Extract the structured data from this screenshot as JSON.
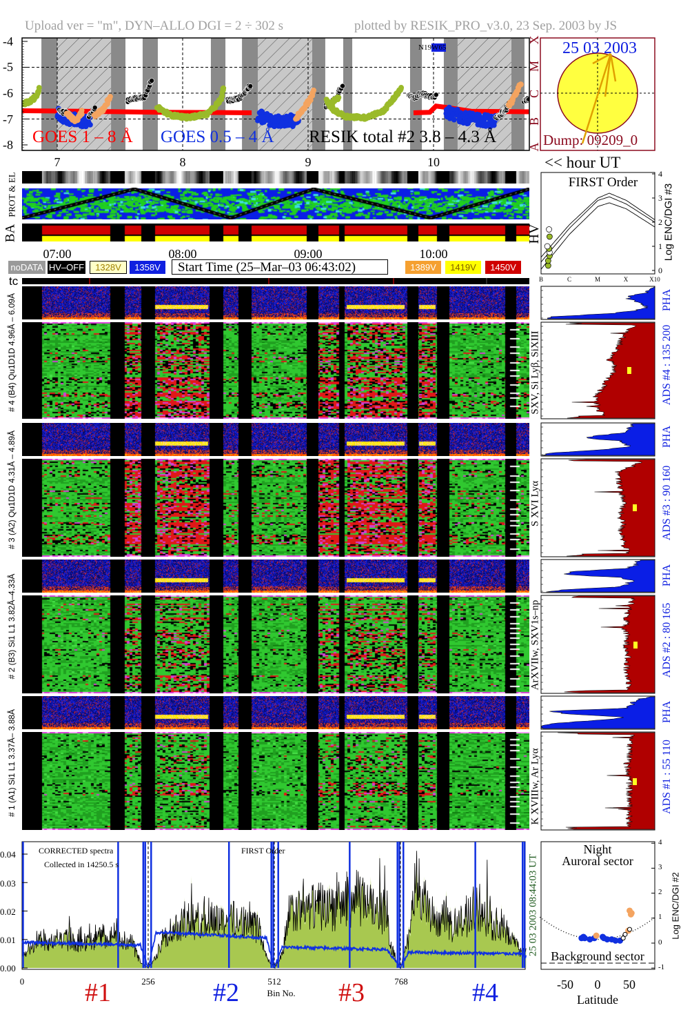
{
  "header": {
    "left": "Upload ver = \"m\", DYN–ALLO DGI =   2 ÷ 302 s",
    "right": "plotted by RESIK_PRO_v3.0, 23 Sep. 2003 by JS"
  },
  "colors": {
    "goes_long": "#ff0000",
    "goes_short": "#1030e0",
    "resik_green": "#9aba2a",
    "resik_orange": "#f4a460",
    "spectrum_fill": "#a8c850",
    "ads_fill": "#b00000",
    "pha_fill": "#0a1ee6",
    "header_gray": "#a0a0a0",
    "dark_red": "#8b0a1e",
    "dark_green": "#1e5a1e"
  },
  "top_plot": {
    "y_ticks": [
      "-4",
      "-5",
      "-6",
      "-7",
      "-8"
    ],
    "hour_labels": [
      "7",
      "8",
      "9",
      "10"
    ],
    "hour_axis_label": "<< hour UT",
    "class_letters": [
      "A",
      "B",
      "C",
      "M",
      "X"
    ],
    "legend": {
      "goes_long": "GOES 1 – 8 Å",
      "goes_short": "GOES 0.5 – 4 Å",
      "resik": "RESIK total #2  3.8 – 4.3 Å"
    },
    "position_label_a": "N19",
    "position_label_b": "W65"
  },
  "chart_data": [
    {
      "type": "scatter",
      "title": "",
      "xlabel": "hour UT",
      "ylabel": "",
      "xlim": [
        6.7172,
        10.764
      ],
      "ylim": [
        -8.2,
        -3.9
      ],
      "grid": true,
      "dark_bands_hours": [
        [
          6.874,
          7.0
        ],
        [
          7.429,
          7.544
        ],
        [
          7.681,
          7.802
        ],
        [
          8.225,
          8.341
        ],
        [
          8.473,
          8.599
        ],
        [
          9.033,
          9.137
        ],
        [
          9.28,
          9.352
        ],
        [
          9.813,
          9.907
        ],
        [
          10.082,
          10.192
        ],
        [
          10.621,
          10.725
        ]
      ],
      "hatched_bands_hours": [
        [
          7.0,
          7.429
        ],
        [
          8.599,
          9.033
        ],
        [
          10.192,
          10.621
        ]
      ],
      "series": [
        {
          "name": "GOES 1 – 8 Å",
          "color": "#ff0000",
          "segments": [
            [
              [
                6.72,
                -6.68
              ],
              [
                7.2,
                -6.7
              ],
              [
                7.8,
                -6.74
              ],
              [
                8.3,
                -6.75
              ],
              [
                8.55,
                -6.76
              ]
            ],
            [
              [
                9.84,
                -6.76
              ],
              [
                9.97,
                -6.74
              ],
              [
                10.02,
                -6.5
              ],
              [
                10.1,
                -6.55
              ],
              [
                10.3,
                -6.7
              ],
              [
                10.76,
                -6.72
              ]
            ]
          ]
        },
        {
          "name": "GOES 0.5 – 4 Å",
          "color": "#1030e0",
          "segments": [
            [
              [
                7.0,
                -6.75
              ],
              [
                7.08,
                -7.0
              ],
              [
                7.16,
                -7.05
              ],
              [
                7.26,
                -7.1
              ]
            ],
            [
              [
                8.6,
                -6.85
              ],
              [
                8.7,
                -7.05
              ],
              [
                8.8,
                -7.1
              ],
              [
                8.92,
                -7.05
              ]
            ],
            [
              [
                10.1,
                -6.7
              ],
              [
                10.25,
                -6.95
              ],
              [
                10.4,
                -7.05
              ],
              [
                10.5,
                -7.1
              ]
            ]
          ]
        },
        {
          "name": "RESIK total #2  3.8 – 4.3 Å",
          "color": "#000000",
          "segments": [
            [
              [
                7.02,
                -6.7
              ],
              [
                7.1,
                -6.8
              ]
            ],
            [
              [
                7.25,
                -6.9
              ],
              [
                7.3,
                -6.6
              ]
            ],
            [
              [
                7.56,
                -6.3
              ],
              [
                7.62,
                -6.2
              ],
              [
                7.7,
                -6.15
              ],
              [
                7.75,
                -5.5
              ]
            ],
            [
              [
                8.35,
                -6.3
              ],
              [
                8.45,
                -6.2
              ],
              [
                8.54,
                -5.7
              ]
            ],
            [
              [
                9.14,
                -6.5
              ],
              [
                9.22,
                -6.2
              ],
              [
                9.27,
                -5.7
              ]
            ],
            [
              [
                9.8,
                -6.1
              ],
              [
                9.85,
                -6.2
              ],
              [
                9.9,
                -6.0
              ],
              [
                9.97,
                -6.15
              ],
              [
                10.02,
                -6.1
              ]
            ],
            [
              [
                10.5,
                -6.95
              ],
              [
                10.58,
                -6.6
              ],
              [
                10.62,
                -6.3
              ]
            ],
            [
              [
                10.72,
                -6.3
              ],
              [
                10.76,
                -6.2
              ]
            ]
          ]
        },
        {
          "name": "",
          "color": "#9aba2a",
          "segments": [
            [
              [
                6.72,
                -6.4
              ],
              [
                6.78,
                -6.35
              ],
              [
                6.84,
                -6.1
              ],
              [
                6.86,
                -5.8
              ]
            ],
            [
              [
                7.8,
                -6.55
              ],
              [
                7.9,
                -6.85
              ],
              [
                8.05,
                -6.95
              ],
              [
                8.2,
                -6.8
              ],
              [
                8.3,
                -6.3
              ],
              [
                8.33,
                -5.8
              ]
            ],
            [
              [
                9.15,
                -6.3
              ],
              [
                9.2,
                -6.65
              ],
              [
                9.3,
                -6.9
              ],
              [
                9.45,
                -6.95
              ],
              [
                9.6,
                -6.7
              ],
              [
                9.7,
                -6.1
              ],
              [
                9.74,
                -5.8
              ]
            ],
            [
              [
                9.18,
                -6.4
              ],
              [
                9.24,
                -6.2
              ]
            ]
          ]
        },
        {
          "name": "",
          "color": "#f4a460",
          "segments": [
            [
              [
                7.08,
                -6.8
              ],
              [
                7.15,
                -7.1
              ],
              [
                7.2,
                -6.7
              ]
            ],
            [
              [
                7.3,
                -6.9
              ],
              [
                7.37,
                -6.6
              ],
              [
                7.42,
                -6.15
              ]
            ],
            [
              [
                8.9,
                -7.0
              ],
              [
                8.96,
                -6.6
              ],
              [
                9.02,
                -6.2
              ],
              [
                9.04,
                -5.95
              ]
            ],
            [
              [
                10.6,
                -6.5
              ],
              [
                10.66,
                -6.0
              ],
              [
                10.7,
                -5.6
              ]
            ]
          ]
        }
      ]
    },
    {
      "type": "line",
      "title": "FIRST Order",
      "xlabel": "",
      "ylabel": "Log ENC/DGI #3",
      "x_tick_labels": [
        "B",
        "C",
        "M",
        "X",
        "X10"
      ],
      "y_tick_labels": [
        "0",
        "1",
        "2",
        "3",
        "4"
      ],
      "ylim": [
        0,
        4
      ],
      "curves": [
        [
          [
            0,
            0.55
          ],
          [
            1,
            1.9
          ],
          [
            2,
            3.0
          ],
          [
            2.4,
            3.2
          ],
          [
            3,
            2.9
          ],
          [
            4,
            2.1
          ]
        ],
        [
          [
            0,
            0.35
          ],
          [
            1,
            1.75
          ],
          [
            2,
            2.9
          ],
          [
            2.4,
            3.05
          ],
          [
            3,
            2.75
          ],
          [
            4,
            2.0
          ]
        ],
        [
          [
            0,
            0.05
          ],
          [
            1,
            1.5
          ],
          [
            2,
            2.65
          ],
          [
            2.4,
            2.8
          ],
          [
            3,
            2.55
          ],
          [
            4,
            1.8
          ]
        ]
      ],
      "points": [
        [
          0.25,
          0.2
        ],
        [
          0.25,
          0.4
        ],
        [
          0.3,
          0.6
        ],
        [
          0.3,
          0.75
        ],
        [
          0.28,
          0.9
        ],
        [
          0.22,
          1.0
        ],
        [
          0.3,
          1.4
        ],
        [
          0.28,
          1.7
        ]
      ]
    },
    {
      "type": "area",
      "title": "",
      "xlabel": "Bin No.",
      "ylabel": "",
      "annotation_1": "CORRECTED spectra",
      "annotation_2": "Collected in 14250.5 s",
      "annotation_3": "FIRST Order",
      "x_tick_labels": [
        "0",
        "256",
        "512",
        "768"
      ],
      "y_tick_labels": [
        "0.00",
        "0.01",
        "0.02",
        "0.03",
        "0.04"
      ],
      "xlim": [
        0,
        1024
      ],
      "ylim": [
        0,
        0.044
      ],
      "envelope_bins": [
        0,
        32,
        64,
        96,
        128,
        160,
        192,
        224,
        240,
        256,
        272,
        288,
        320,
        352,
        384,
        416,
        448,
        480,
        496,
        512,
        528,
        544,
        576,
        608,
        640,
        672,
        704,
        736,
        752,
        768,
        784,
        800,
        832,
        864,
        896,
        928,
        960,
        992,
        1010,
        1024
      ],
      "envelope_values": [
        0.004,
        0.01,
        0.01,
        0.01,
        0.01,
        0.011,
        0.011,
        0.009,
        0.002,
        0.0,
        0.004,
        0.013,
        0.015,
        0.017,
        0.018,
        0.018,
        0.017,
        0.015,
        0.004,
        0.0,
        0.005,
        0.02,
        0.021,
        0.022,
        0.023,
        0.024,
        0.025,
        0.02,
        0.006,
        0.0,
        0.01,
        0.03,
        0.018,
        0.016,
        0.017,
        0.022,
        0.015,
        0.011,
        0.007,
        0.005
      ],
      "blue_bins": [
        0,
        240,
        256,
        272,
        380,
        496,
        512,
        528,
        740,
        768,
        784,
        1010,
        1024
      ],
      "blue_values": [
        0.009,
        0.008,
        0.0,
        0.0125,
        0.0117,
        0.0105,
        0.0,
        0.0073,
        0.0065,
        0.0,
        0.0055,
        0.005,
        0.004
      ],
      "blue_spikes": [
        2,
        195,
        420,
        665,
        920,
        246,
        250,
        262,
        506,
        510,
        520,
        762,
        766,
        774,
        1016,
        1020
      ]
    },
    {
      "type": "scatter",
      "title": "",
      "xlabel": "Latitude",
      "ylabel": "Log ENC/DGI #2",
      "x_tick_labels": [
        "-50",
        "0",
        "50"
      ],
      "y_tick_labels": [
        "4",
        "3",
        "2",
        "1",
        "0",
        "-1"
      ],
      "annotation_top_1": "Night",
      "annotation_top_2": "Auroral sector",
      "annotation_bottom": "Background sector",
      "xlim": [
        -90,
        90
      ],
      "ylim": [
        -1,
        4
      ],
      "blue_points": [
        [
          -25,
          0.2
        ],
        [
          -22,
          0.25
        ],
        [
          -20,
          0.2
        ],
        [
          -12,
          0.15
        ],
        [
          -5,
          0.2
        ],
        [
          8,
          0.25
        ],
        [
          10,
          0.2
        ],
        [
          15,
          0.15
        ],
        [
          22,
          0.15
        ],
        [
          28,
          0.1
        ],
        [
          35,
          0.1
        ]
      ],
      "orange_points": [
        [
          -2,
          0.3
        ],
        [
          48,
          0.5
        ],
        [
          50,
          1.3
        ],
        [
          52,
          1.15
        ],
        [
          53,
          1.2
        ]
      ],
      "open_points": [
        [
          40,
          0.2
        ],
        [
          43,
          0.35
        ],
        [
          50,
          0.55
        ]
      ]
    }
  ],
  "sun_panel": {
    "date": "25 03 2003",
    "dump": "Dump: 09209_0"
  },
  "bands": {
    "prot_el_label": "PROT & EL",
    "ba_label": "BA",
    "hv_label": "HV"
  },
  "time_labels": [
    "07:00",
    "08:00",
    "09:00",
    "10:00"
  ],
  "legend_boxes": [
    {
      "label": "noDATA",
      "bg": "#9a9a9a",
      "fg": "#ffffff"
    },
    {
      "label": "HV–OFF",
      "bg": "#000000",
      "fg": "#ffffff"
    },
    {
      "label": "1328V",
      "bg": "#ffffc8",
      "fg": "#a08000"
    },
    {
      "label": "1358V",
      "bg": "#1020e0",
      "fg": "#ffffff"
    },
    {
      "label": "1389V",
      "bg": "#f5a030",
      "fg": "#ffffff"
    },
    {
      "label": "1419V",
      "bg": "#ffff00",
      "fg": "#806000"
    },
    {
      "label": "1450V",
      "bg": "#d00000",
      "fg": "#ffffff"
    }
  ],
  "start_time": "Start Time (25–Mar–03 06:43:02)",
  "tc_label": "tc",
  "data_gaps_hours": [
    [
      6.717,
      6.874
    ],
    [
      7.423,
      7.533
    ],
    [
      7.67,
      7.78
    ],
    [
      8.209,
      8.319
    ],
    [
      8.44,
      8.549
    ],
    [
      8.989,
      9.082
    ],
    [
      9.247,
      9.291
    ],
    [
      9.786,
      9.879
    ],
    [
      10.022,
      10.126
    ],
    [
      10.566,
      10.654
    ]
  ],
  "detectors": [
    {
      "left_label": "# 4 (B4) Qu1D1D 4.96Å – 6.09Å",
      "lines": "SXV, Si Lyβ, SiXIII",
      "pha_label": "PHA",
      "ads_label": "ADS #4 :   135 200",
      "pha_profile": [
        3.9,
        3.8,
        3.7,
        3.2,
        3.0,
        3.3,
        3.6,
        3.7,
        3.3,
        2.5,
        0.5,
        0.0
      ],
      "ads_profile": [
        3.4,
        3.1,
        2.9,
        2.8,
        2.7,
        2.5,
        2.4,
        2.6,
        2.5,
        2.3,
        2.2,
        2.0,
        1.9,
        2.0,
        2.1,
        2.3
      ],
      "red_fraction": 0.25
    },
    {
      "left_label": "# 3 (A2) Qu1D1D 4.31Å – 4.89Å",
      "lines": "S XVI Lyα",
      "pha_label": "PHA",
      "ads_label": "ADS #3 :   90 160",
      "pha_profile": [
        3.2,
        3.2,
        3.1,
        3.1,
        2.2,
        1.5,
        2.8,
        3.0,
        3.1,
        2.0,
        0.3,
        0.0
      ],
      "ads_profile": [
        3.6,
        3.3,
        2.7,
        2.7,
        2.8,
        2.8,
        2.9,
        2.9,
        2.8,
        2.8,
        2.9,
        2.8,
        2.9,
        2.9,
        3.0,
        3.1
      ],
      "red_fraction": 0.3
    },
    {
      "left_label": "# 2 (B3) Si1 L1 3.82Å–4.33Å",
      "lines": "ArXVIIw, SXV1s–np",
      "pha_label": "PHA",
      "ads_label": "ADS #2 :   80 165",
      "pha_profile": [
        3.4,
        3.4,
        3.3,
        3.0,
        1.0,
        0.8,
        2.8,
        3.2,
        3.0,
        2.9,
        0.8,
        0.0
      ],
      "ads_profile": [
        3.2,
        3.2,
        3.1,
        3.0,
        3.0,
        2.9,
        3.0,
        3.0,
        3.0,
        3.1,
        3.0,
        3.0,
        3.0,
        3.1,
        3.1,
        3.2
      ],
      "red_fraction": 0.18
    },
    {
      "left_label": "# 1 (A1) Si1 L1 3.37Å– 3.88Å",
      "lines": "K XVIIIw, Ar Lyα",
      "pha_label": "PHA",
      "ads_label": "ADS #1 :   55 110",
      "pha_profile": [
        3.8,
        3.5,
        3.2,
        3.2,
        3.0,
        0.3,
        1.0,
        3.0,
        2.0,
        0.5,
        0.0,
        0.0
      ],
      "ads_profile": [
        3.3,
        3.2,
        3.1,
        3.1,
        3.1,
        3.0,
        3.1,
        3.1,
        3.1,
        3.1,
        3.1,
        3.1,
        3.1,
        3.1,
        3.1,
        3.2
      ],
      "red_fraction": 0.15
    }
  ],
  "small_axis_labels": [
    "B",
    "C",
    "M",
    "X",
    "X10"
  ],
  "spectrum_side": "25 03 2003   08:44:03 UT",
  "detector_numbers": [
    "#1",
    "#2",
    "#3",
    "#4"
  ],
  "detector_number_colors": [
    "#d01010",
    "#1020e0",
    "#d01010",
    "#1020e0"
  ]
}
